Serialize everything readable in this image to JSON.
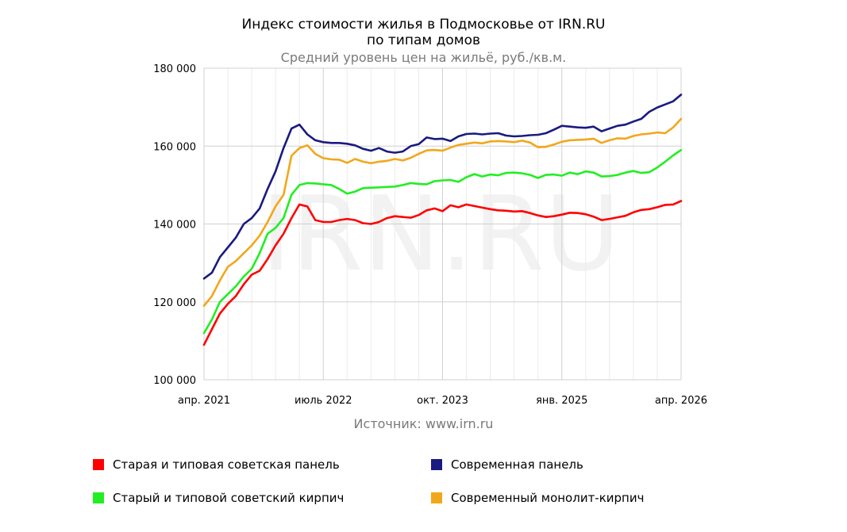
{
  "chart_data": {
    "type": "line",
    "title_line1": "Индекс стоимости жилья в Подмосковье от IRN.RU",
    "title_line2": "по типам домов",
    "subtitle": "Средний уровень цен на жильё, руб./кв.м.",
    "source": "Источник: www.irn.ru",
    "watermark": "IRN.RU",
    "ylim": [
      100000,
      180000
    ],
    "y_ticks": [
      {
        "value": 100000,
        "label": "100 000"
      },
      {
        "value": 120000,
        "label": "120 000"
      },
      {
        "value": 140000,
        "label": "140 000"
      },
      {
        "value": 160000,
        "label": "160 000"
      },
      {
        "value": 180000,
        "label": "180 000"
      }
    ],
    "x_ticks": [
      {
        "month": 0,
        "label": "апр. 2021"
      },
      {
        "month": 15,
        "label": "июль 2022"
      },
      {
        "month": 30,
        "label": "окт. 2023"
      },
      {
        "month": 45,
        "label": "янв. 2025"
      },
      {
        "month": 60,
        "label": "апр. 2026"
      }
    ],
    "grid": true,
    "legend_position": "bottom",
    "series": [
      {
        "name": "Старая и типовая советская панель",
        "color": "#ff0000",
        "points": [
          [
            0,
            109000
          ],
          [
            1,
            113000
          ],
          [
            2,
            117000
          ],
          [
            3,
            119500
          ],
          [
            4,
            121500
          ],
          [
            5,
            124500
          ],
          [
            6,
            127000
          ],
          [
            7,
            128000
          ],
          [
            8,
            131000
          ],
          [
            9,
            134500
          ],
          [
            10,
            137500
          ],
          [
            11,
            141500
          ],
          [
            12,
            145000
          ],
          [
            13,
            144500
          ],
          [
            14,
            141000
          ],
          [
            15,
            140500
          ],
          [
            16,
            140500
          ],
          [
            17,
            141000
          ],
          [
            18,
            141300
          ],
          [
            19,
            141000
          ],
          [
            20,
            140200
          ],
          [
            21,
            140000
          ],
          [
            22,
            140500
          ],
          [
            23,
            141500
          ],
          [
            24,
            142000
          ],
          [
            25,
            141800
          ],
          [
            26,
            141600
          ],
          [
            27,
            142300
          ],
          [
            28,
            143500
          ],
          [
            29,
            144000
          ],
          [
            30,
            143300
          ],
          [
            31,
            144800
          ],
          [
            32,
            144300
          ],
          [
            33,
            145000
          ],
          [
            34,
            144600
          ],
          [
            35,
            144200
          ],
          [
            36,
            143800
          ],
          [
            37,
            143500
          ],
          [
            38,
            143400
          ],
          [
            39,
            143200
          ],
          [
            40,
            143300
          ],
          [
            41,
            142800
          ],
          [
            42,
            142200
          ],
          [
            43,
            141800
          ],
          [
            44,
            142000
          ],
          [
            45,
            142400
          ],
          [
            46,
            142900
          ],
          [
            47,
            142800
          ],
          [
            48,
            142500
          ],
          [
            49,
            141900
          ],
          [
            50,
            141000
          ],
          [
            51,
            141300
          ],
          [
            52,
            141700
          ],
          [
            53,
            142100
          ],
          [
            54,
            143000
          ],
          [
            55,
            143600
          ],
          [
            56,
            143800
          ],
          [
            57,
            144300
          ],
          [
            58,
            144900
          ],
          [
            59,
            145000
          ],
          [
            60,
            145900
          ]
        ]
      },
      {
        "name": "Современная панель",
        "color": "#1a1a80",
        "points": [
          [
            0,
            126000
          ],
          [
            1,
            127500
          ],
          [
            2,
            131500
          ],
          [
            3,
            134000
          ],
          [
            4,
            136500
          ],
          [
            5,
            140000
          ],
          [
            6,
            141500
          ],
          [
            7,
            144000
          ],
          [
            8,
            149000
          ],
          [
            9,
            153500
          ],
          [
            10,
            159500
          ],
          [
            11,
            164500
          ],
          [
            12,
            165500
          ],
          [
            13,
            163000
          ],
          [
            14,
            161500
          ],
          [
            15,
            161000
          ],
          [
            16,
            160800
          ],
          [
            17,
            160800
          ],
          [
            18,
            160600
          ],
          [
            19,
            160200
          ],
          [
            20,
            159300
          ],
          [
            21,
            158800
          ],
          [
            22,
            159500
          ],
          [
            23,
            158600
          ],
          [
            24,
            158300
          ],
          [
            25,
            158600
          ],
          [
            26,
            160000
          ],
          [
            27,
            160500
          ],
          [
            28,
            162200
          ],
          [
            29,
            161800
          ],
          [
            30,
            161900
          ],
          [
            31,
            161300
          ],
          [
            32,
            162500
          ],
          [
            33,
            163100
          ],
          [
            34,
            163200
          ],
          [
            35,
            163000
          ],
          [
            36,
            163200
          ],
          [
            37,
            163300
          ],
          [
            38,
            162700
          ],
          [
            39,
            162500
          ],
          [
            40,
            162600
          ],
          [
            41,
            162800
          ],
          [
            42,
            162900
          ],
          [
            43,
            163300
          ],
          [
            44,
            164200
          ],
          [
            45,
            165200
          ],
          [
            46,
            165000
          ],
          [
            47,
            164800
          ],
          [
            48,
            164700
          ],
          [
            49,
            165000
          ],
          [
            50,
            163800
          ],
          [
            51,
            164500
          ],
          [
            52,
            165200
          ],
          [
            53,
            165500
          ],
          [
            54,
            166300
          ],
          [
            55,
            167000
          ],
          [
            56,
            168800
          ],
          [
            57,
            169900
          ],
          [
            58,
            170700
          ],
          [
            59,
            171500
          ],
          [
            60,
            173200
          ]
        ]
      },
      {
        "name": "Старый и типовой советский кирпич",
        "color": "#22ee22",
        "points": [
          [
            0,
            112000
          ],
          [
            1,
            115500
          ],
          [
            2,
            120000
          ],
          [
            3,
            122000
          ],
          [
            4,
            124000
          ],
          [
            5,
            126500
          ],
          [
            6,
            128500
          ],
          [
            7,
            132500
          ],
          [
            8,
            137500
          ],
          [
            9,
            139000
          ],
          [
            10,
            141500
          ],
          [
            11,
            147500
          ],
          [
            12,
            150000
          ],
          [
            13,
            150500
          ],
          [
            14,
            150400
          ],
          [
            15,
            150200
          ],
          [
            16,
            150000
          ],
          [
            17,
            149000
          ],
          [
            18,
            147800
          ],
          [
            19,
            148300
          ],
          [
            20,
            149200
          ],
          [
            21,
            149300
          ],
          [
            22,
            149400
          ],
          [
            23,
            149500
          ],
          [
            24,
            149600
          ],
          [
            25,
            150000
          ],
          [
            26,
            150500
          ],
          [
            27,
            150300
          ],
          [
            28,
            150200
          ],
          [
            29,
            151000
          ],
          [
            30,
            151200
          ],
          [
            31,
            151300
          ],
          [
            32,
            150800
          ],
          [
            33,
            152000
          ],
          [
            34,
            152800
          ],
          [
            35,
            152200
          ],
          [
            36,
            152700
          ],
          [
            37,
            152500
          ],
          [
            38,
            153100
          ],
          [
            39,
            153200
          ],
          [
            40,
            153000
          ],
          [
            41,
            152600
          ],
          [
            42,
            151800
          ],
          [
            43,
            152600
          ],
          [
            44,
            152700
          ],
          [
            45,
            152400
          ],
          [
            46,
            153200
          ],
          [
            47,
            152800
          ],
          [
            48,
            153500
          ],
          [
            49,
            153200
          ],
          [
            50,
            152200
          ],
          [
            51,
            152300
          ],
          [
            52,
            152600
          ],
          [
            53,
            153200
          ],
          [
            54,
            153600
          ],
          [
            55,
            153100
          ],
          [
            56,
            153300
          ],
          [
            57,
            154500
          ],
          [
            58,
            156000
          ],
          [
            59,
            157600
          ],
          [
            60,
            159000
          ]
        ]
      },
      {
        "name": "Современный монолит-кирпич",
        "color": "#f2a71b",
        "points": [
          [
            0,
            119000
          ],
          [
            1,
            121500
          ],
          [
            2,
            125500
          ],
          [
            3,
            129000
          ],
          [
            4,
            130500
          ],
          [
            5,
            132500
          ],
          [
            6,
            134500
          ],
          [
            7,
            137000
          ],
          [
            8,
            140500
          ],
          [
            9,
            144500
          ],
          [
            10,
            147500
          ],
          [
            11,
            157500
          ],
          [
            12,
            159500
          ],
          [
            13,
            160200
          ],
          [
            14,
            158000
          ],
          [
            15,
            156900
          ],
          [
            16,
            156600
          ],
          [
            17,
            156500
          ],
          [
            18,
            155700
          ],
          [
            19,
            156700
          ],
          [
            20,
            156000
          ],
          [
            21,
            155600
          ],
          [
            22,
            156000
          ],
          [
            23,
            156200
          ],
          [
            24,
            156700
          ],
          [
            25,
            156300
          ],
          [
            26,
            157000
          ],
          [
            27,
            158000
          ],
          [
            28,
            158900
          ],
          [
            29,
            159000
          ],
          [
            30,
            158800
          ],
          [
            31,
            159600
          ],
          [
            32,
            160300
          ],
          [
            33,
            160600
          ],
          [
            34,
            160900
          ],
          [
            35,
            160700
          ],
          [
            36,
            161200
          ],
          [
            37,
            161300
          ],
          [
            38,
            161200
          ],
          [
            39,
            161000
          ],
          [
            40,
            161400
          ],
          [
            41,
            160900
          ],
          [
            42,
            159700
          ],
          [
            43,
            159800
          ],
          [
            44,
            160400
          ],
          [
            45,
            161100
          ],
          [
            46,
            161500
          ],
          [
            47,
            161600
          ],
          [
            48,
            161700
          ],
          [
            49,
            161900
          ],
          [
            50,
            160800
          ],
          [
            51,
            161500
          ],
          [
            52,
            162000
          ],
          [
            53,
            161900
          ],
          [
            54,
            162600
          ],
          [
            55,
            163000
          ],
          [
            56,
            163200
          ],
          [
            57,
            163500
          ],
          [
            58,
            163300
          ],
          [
            59,
            164800
          ],
          [
            60,
            167000
          ]
        ]
      }
    ]
  }
}
